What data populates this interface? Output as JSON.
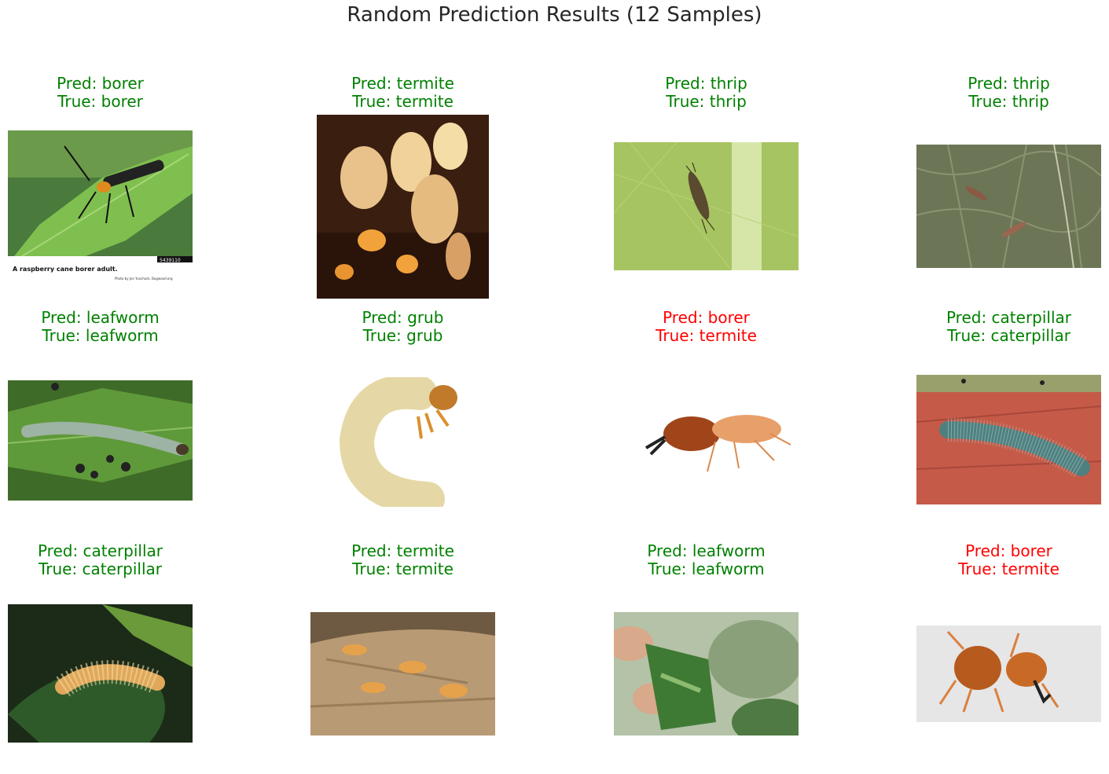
{
  "title": "Random Prediction Results (12 Samples)",
  "colors": {
    "correct": "#008000",
    "wrong": "#ff0000",
    "title": "#262626"
  },
  "samples": [
    {
      "pred": "Pred: borer",
      "true_label": "True: borer",
      "correct": true,
      "photo_caption": "A raspberry cane borer adult.",
      "photo_credit": "Photo by Jon Yuschock, Bugwood.org",
      "photo_id": "5439110"
    },
    {
      "pred": "Pred: termite",
      "true_label": "True: termite",
      "correct": true
    },
    {
      "pred": "Pred: thrip",
      "true_label": "True: thrip",
      "correct": true
    },
    {
      "pred": "Pred: thrip",
      "true_label": "True: thrip",
      "correct": true
    },
    {
      "pred": "Pred: leafworm",
      "true_label": "True: leafworm",
      "correct": true
    },
    {
      "pred": "Pred: grub",
      "true_label": "True: grub",
      "correct": true
    },
    {
      "pred": "Pred: borer",
      "true_label": "True: termite",
      "correct": false
    },
    {
      "pred": "Pred: caterpillar",
      "true_label": "True: caterpillar",
      "correct": true
    },
    {
      "pred": "Pred: caterpillar",
      "true_label": "True: caterpillar",
      "correct": true
    },
    {
      "pred": "Pred: termite",
      "true_label": "True: termite",
      "correct": true
    },
    {
      "pred": "Pred: leafworm",
      "true_label": "True: leafworm",
      "correct": true
    },
    {
      "pred": "Pred: borer",
      "true_label": "True: termite",
      "correct": false
    }
  ]
}
